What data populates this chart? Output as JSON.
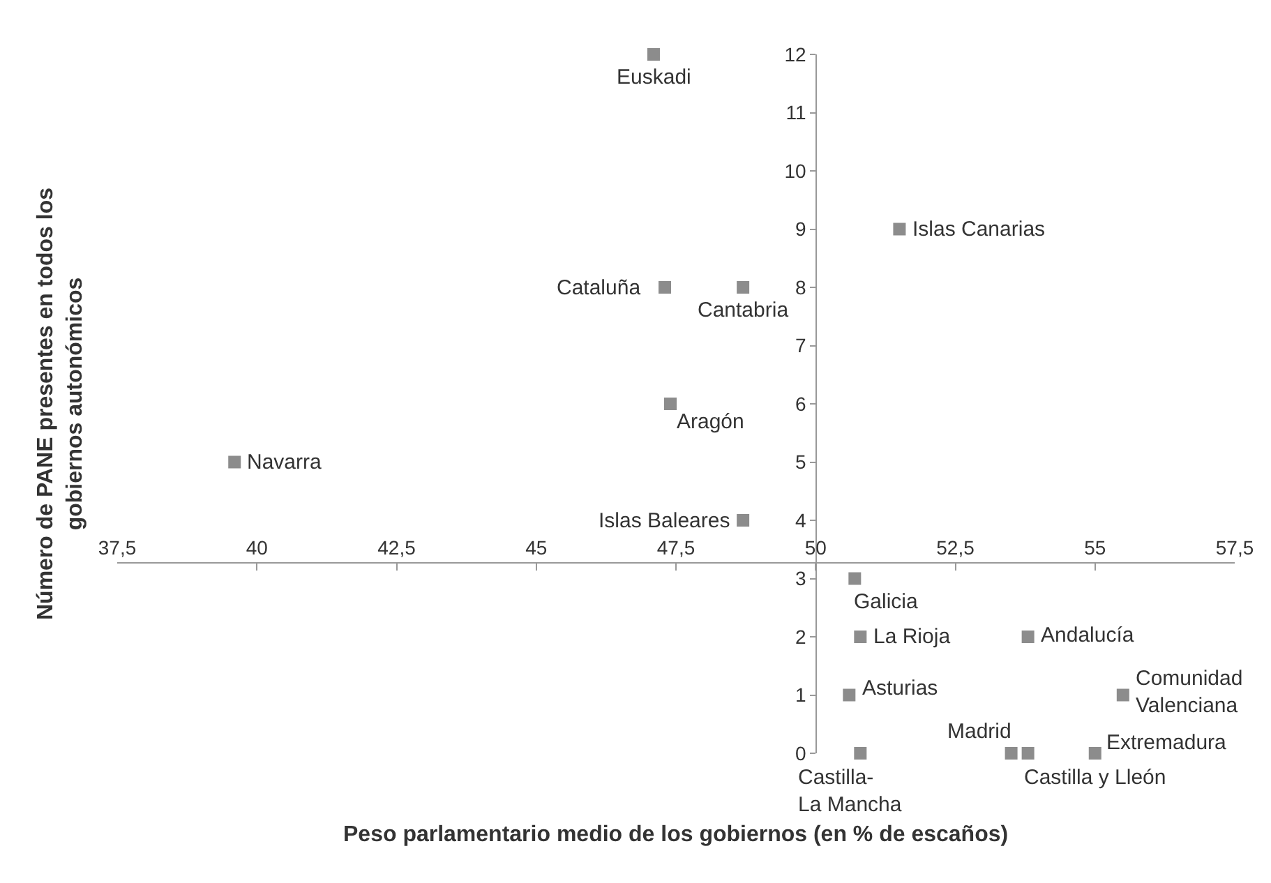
{
  "chart_data": {
    "type": "scatter",
    "xlabel": "Peso parlamentario medio de los gobiernos (en % de escaños)",
    "ylabel": "Número de PANE presentes en todos los\ngobiernos autonómicos",
    "series": [
      {
        "color": "#8c8c8c",
        "x": [
          47.1,
          47.3,
          48.7,
          47.4,
          39.6,
          48.7,
          51.5,
          50.7,
          50.8,
          53.8,
          50.6,
          55.5,
          50.8,
          53.5,
          53.8,
          55.0
        ],
        "values": [
          12,
          8,
          8,
          6,
          5,
          4,
          9,
          3,
          2,
          2,
          1,
          1,
          0,
          0,
          0,
          0
        ]
      }
    ],
    "annotations": [
      {
        "text": "Euskadi",
        "x": 47.1,
        "y": 12
      },
      {
        "text": "Cataluña",
        "x": 47.3,
        "y": 8
      },
      {
        "text": "Cantabria",
        "x": 48.7,
        "y": 8
      },
      {
        "text": "Aragón",
        "x": 47.4,
        "y": 6
      },
      {
        "text": "Navarra",
        "x": 39.6,
        "y": 5
      },
      {
        "text": "Islas Baleares",
        "x": 48.7,
        "y": 4
      },
      {
        "text": "Islas Canarias",
        "x": 51.5,
        "y": 9
      },
      {
        "text": "Galicia",
        "x": 50.7,
        "y": 3
      },
      {
        "text": "La Rioja",
        "x": 50.8,
        "y": 2
      },
      {
        "text": "Andalucía",
        "x": 53.8,
        "y": 2
      },
      {
        "text": "Asturias",
        "x": 50.6,
        "y": 1
      },
      {
        "text": "Comunidad\nValenciana",
        "x": 55.5,
        "y": 1
      },
      {
        "text": "Castilla-\nLa Mancha",
        "x": 50.8,
        "y": 0
      },
      {
        "text": "Madrid",
        "x": 53.5,
        "y": 0
      },
      {
        "text": "Castilla y Lleón",
        "x": 53.8,
        "y": 0
      },
      {
        "text": "Extremadura",
        "x": 55.0,
        "y": 0
      }
    ],
    "xlim": [
      37.5,
      57.5
    ],
    "xticks": [
      {
        "value": 37.5,
        "label": "37,5"
      },
      40,
      {
        "value": 42.5,
        "label": "42,5"
      },
      45,
      {
        "value": 47.5,
        "label": "47,5"
      },
      50,
      {
        "value": 52.5,
        "label": "52,5"
      },
      55,
      {
        "value": 57.5,
        "label": "57,5"
      }
    ],
    "ylim": [
      0,
      12
    ],
    "yticks": [
      0,
      1,
      2,
      3,
      4,
      5,
      6,
      7,
      8,
      9,
      10,
      11,
      12
    ],
    "marker": "square"
  }
}
